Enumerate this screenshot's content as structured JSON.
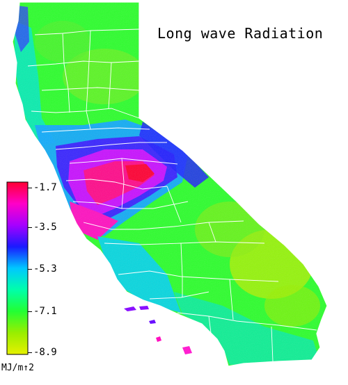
{
  "map": {
    "title": "Long wave Radiation",
    "region_name": "California counties",
    "colors": {
      "background": "#ffffff",
      "county_lines": "#ffffff",
      "state_outline": "#ffffff"
    }
  },
  "legend": {
    "unit": "MJ/m↑2",
    "ticks": [
      "-1.7",
      "-3.5",
      "-5.3",
      "-7.1",
      "-8.9"
    ],
    "stops": [
      {
        "value": -1.7,
        "color": "#ff0033"
      },
      {
        "value": -2.6,
        "color": "#ff00c8"
      },
      {
        "value": -3.5,
        "color": "#a600ff"
      },
      {
        "value": -4.4,
        "color": "#1a1aff"
      },
      {
        "value": -5.3,
        "color": "#00c8ff"
      },
      {
        "value": -6.2,
        "color": "#00ffaa"
      },
      {
        "value": -7.1,
        "color": "#22ff33"
      },
      {
        "value": -8.0,
        "color": "#99ee00"
      },
      {
        "value": -8.9,
        "color": "#e6f000"
      }
    ]
  }
}
